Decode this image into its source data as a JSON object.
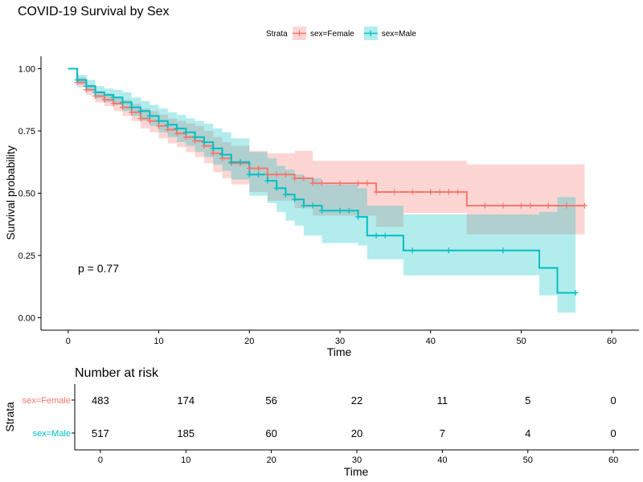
{
  "chart_data": {
    "type": "line",
    "title": "COVID-19 Survival by Sex",
    "xlabel": "Time",
    "ylabel": "Survival probability",
    "xlim": [
      -3,
      63
    ],
    "ylim": [
      -0.05,
      1.05
    ],
    "x_ticks": [
      0,
      10,
      20,
      30,
      40,
      50,
      60
    ],
    "y_ticks": [
      0.0,
      0.25,
      0.5,
      0.75,
      1.0
    ],
    "y_tick_labels": [
      "0.00",
      "0.25",
      "0.50",
      "0.75",
      "1.00"
    ],
    "grid": false,
    "legend": {
      "title": "Strata",
      "position": "top"
    },
    "annotation": "p = 0.77",
    "series": [
      {
        "name": "sex=Female",
        "color": "#F8766D",
        "band_color": "#F8766D",
        "steps": [
          [
            0,
            1.0
          ],
          [
            1,
            0.945
          ],
          [
            2,
            0.915
          ],
          [
            3,
            0.89
          ],
          [
            4,
            0.875
          ],
          [
            5,
            0.86
          ],
          [
            6,
            0.845
          ],
          [
            7,
            0.825
          ],
          [
            8,
            0.8
          ],
          [
            9,
            0.79
          ],
          [
            10,
            0.77
          ],
          [
            11,
            0.755
          ],
          [
            12,
            0.74
          ],
          [
            13,
            0.725
          ],
          [
            14,
            0.71
          ],
          [
            15,
            0.69
          ],
          [
            16,
            0.66
          ],
          [
            17,
            0.64
          ],
          [
            18,
            0.62
          ],
          [
            20,
            0.6
          ],
          [
            22,
            0.575
          ],
          [
            25,
            0.56
          ],
          [
            27,
            0.54
          ],
          [
            34,
            0.505
          ],
          [
            44,
            0.45
          ],
          [
            57,
            0.45
          ]
        ],
        "lower": [
          [
            0,
            1.0
          ],
          [
            1,
            0.925
          ],
          [
            2,
            0.895
          ],
          [
            3,
            0.865
          ],
          [
            4,
            0.85
          ],
          [
            5,
            0.83
          ],
          [
            6,
            0.81
          ],
          [
            7,
            0.79
          ],
          [
            8,
            0.76
          ],
          [
            9,
            0.745
          ],
          [
            10,
            0.72
          ],
          [
            11,
            0.7
          ],
          [
            12,
            0.685
          ],
          [
            13,
            0.665
          ],
          [
            14,
            0.645
          ],
          [
            15,
            0.62
          ],
          [
            16,
            0.585
          ],
          [
            17,
            0.56
          ],
          [
            18,
            0.535
          ],
          [
            20,
            0.505
          ],
          [
            22,
            0.47
          ],
          [
            25,
            0.44
          ],
          [
            27,
            0.41
          ],
          [
            34,
            0.365
          ],
          [
            37,
            0.42
          ],
          [
            44,
            0.335
          ],
          [
            57,
            0.335
          ]
        ],
        "upper": [
          [
            0,
            1.0
          ],
          [
            1,
            0.965
          ],
          [
            2,
            0.935
          ],
          [
            3,
            0.91
          ],
          [
            4,
            0.9
          ],
          [
            5,
            0.885
          ],
          [
            6,
            0.875
          ],
          [
            7,
            0.86
          ],
          [
            8,
            0.84
          ],
          [
            9,
            0.83
          ],
          [
            10,
            0.815
          ],
          [
            11,
            0.8
          ],
          [
            12,
            0.79
          ],
          [
            13,
            0.78
          ],
          [
            14,
            0.77
          ],
          [
            15,
            0.75
          ],
          [
            16,
            0.725
          ],
          [
            17,
            0.705
          ],
          [
            18,
            0.69
          ],
          [
            20,
            0.67
          ],
          [
            22,
            0.66
          ],
          [
            25,
            0.67
          ],
          [
            27,
            0.63
          ],
          [
            34,
            0.63
          ],
          [
            44,
            0.615
          ],
          [
            57,
            0.615
          ]
        ],
        "censors": [
          [
            1,
            0.945
          ],
          [
            2,
            0.915
          ],
          [
            3,
            0.89
          ],
          [
            4,
            0.875
          ],
          [
            5,
            0.86
          ],
          [
            6,
            0.845
          ],
          [
            7,
            0.825
          ],
          [
            8,
            0.8
          ],
          [
            9,
            0.79
          ],
          [
            10,
            0.77
          ],
          [
            11,
            0.755
          ],
          [
            12,
            0.74
          ],
          [
            13,
            0.725
          ],
          [
            14,
            0.71
          ],
          [
            15,
            0.69
          ],
          [
            16,
            0.66
          ],
          [
            17,
            0.64
          ],
          [
            18,
            0.62
          ],
          [
            19,
            0.62
          ],
          [
            20,
            0.6
          ],
          [
            21,
            0.6
          ],
          [
            22,
            0.575
          ],
          [
            23,
            0.575
          ],
          [
            24,
            0.575
          ],
          [
            25,
            0.56
          ],
          [
            26,
            0.56
          ],
          [
            27,
            0.54
          ],
          [
            28,
            0.54
          ],
          [
            30,
            0.54
          ],
          [
            32,
            0.54
          ],
          [
            33,
            0.54
          ],
          [
            34,
            0.505
          ],
          [
            36,
            0.505
          ],
          [
            38,
            0.505
          ],
          [
            40,
            0.505
          ],
          [
            41,
            0.505
          ],
          [
            42,
            0.505
          ],
          [
            43,
            0.505
          ],
          [
            46,
            0.45
          ],
          [
            48,
            0.45
          ],
          [
            50,
            0.45
          ],
          [
            51,
            0.45
          ],
          [
            53,
            0.45
          ],
          [
            55,
            0.45
          ],
          [
            57,
            0.45
          ]
        ]
      },
      {
        "name": "sex=Male",
        "color": "#00BFC4",
        "band_color": "#00BFC4",
        "steps": [
          [
            0,
            1.0
          ],
          [
            1,
            0.955
          ],
          [
            2,
            0.93
          ],
          [
            3,
            0.905
          ],
          [
            4,
            0.895
          ],
          [
            5,
            0.885
          ],
          [
            6,
            0.865
          ],
          [
            7,
            0.845
          ],
          [
            8,
            0.83
          ],
          [
            9,
            0.81
          ],
          [
            10,
            0.79
          ],
          [
            11,
            0.775
          ],
          [
            12,
            0.76
          ],
          [
            13,
            0.745
          ],
          [
            14,
            0.725
          ],
          [
            15,
            0.705
          ],
          [
            16,
            0.68
          ],
          [
            17,
            0.655
          ],
          [
            18,
            0.625
          ],
          [
            20,
            0.575
          ],
          [
            22,
            0.55
          ],
          [
            23,
            0.52
          ],
          [
            24,
            0.495
          ],
          [
            25,
            0.475
          ],
          [
            26,
            0.45
          ],
          [
            28,
            0.43
          ],
          [
            32,
            0.405
          ],
          [
            33,
            0.33
          ],
          [
            37,
            0.27
          ],
          [
            52,
            0.2
          ],
          [
            54,
            0.1
          ],
          [
            56,
            0.1
          ]
        ],
        "lower": [
          [
            0,
            1.0
          ],
          [
            1,
            0.935
          ],
          [
            2,
            0.91
          ],
          [
            3,
            0.88
          ],
          [
            4,
            0.865
          ],
          [
            5,
            0.855
          ],
          [
            6,
            0.83
          ],
          [
            7,
            0.81
          ],
          [
            8,
            0.79
          ],
          [
            9,
            0.77
          ],
          [
            10,
            0.745
          ],
          [
            11,
            0.725
          ],
          [
            12,
            0.705
          ],
          [
            13,
            0.69
          ],
          [
            14,
            0.665
          ],
          [
            15,
            0.645
          ],
          [
            16,
            0.615
          ],
          [
            17,
            0.59
          ],
          [
            18,
            0.555
          ],
          [
            20,
            0.49
          ],
          [
            22,
            0.46
          ],
          [
            23,
            0.425
          ],
          [
            24,
            0.39
          ],
          [
            25,
            0.37
          ],
          [
            26,
            0.33
          ],
          [
            28,
            0.3
          ],
          [
            32,
            0.29
          ],
          [
            33,
            0.235
          ],
          [
            37,
            0.17
          ],
          [
            52,
            0.09
          ],
          [
            54,
            0.02
          ],
          [
            56,
            0.02
          ]
        ],
        "upper": [
          [
            0,
            1.0
          ],
          [
            1,
            0.975
          ],
          [
            2,
            0.955
          ],
          [
            3,
            0.93
          ],
          [
            4,
            0.92
          ],
          [
            5,
            0.915
          ],
          [
            6,
            0.905
          ],
          [
            7,
            0.885
          ],
          [
            8,
            0.87
          ],
          [
            9,
            0.855
          ],
          [
            10,
            0.84
          ],
          [
            11,
            0.825
          ],
          [
            12,
            0.815
          ],
          [
            13,
            0.8
          ],
          [
            14,
            0.79
          ],
          [
            15,
            0.78
          ],
          [
            16,
            0.76
          ],
          [
            17,
            0.745
          ],
          [
            18,
            0.72
          ],
          [
            20,
            0.665
          ],
          [
            22,
            0.64
          ],
          [
            23,
            0.61
          ],
          [
            24,
            0.595
          ],
          [
            25,
            0.575
          ],
          [
            26,
            0.56
          ],
          [
            28,
            0.535
          ],
          [
            32,
            0.52
          ],
          [
            33,
            0.45
          ],
          [
            37,
            0.415
          ],
          [
            52,
            0.425
          ],
          [
            54,
            0.485
          ],
          [
            56,
            0.485
          ]
        ],
        "censors": [
          [
            1,
            0.955
          ],
          [
            2,
            0.93
          ],
          [
            3,
            0.905
          ],
          [
            5,
            0.885
          ],
          [
            6,
            0.865
          ],
          [
            7,
            0.845
          ],
          [
            8,
            0.83
          ],
          [
            9,
            0.81
          ],
          [
            10,
            0.79
          ],
          [
            11,
            0.775
          ],
          [
            12,
            0.76
          ],
          [
            13,
            0.745
          ],
          [
            14,
            0.725
          ],
          [
            15,
            0.705
          ],
          [
            16,
            0.68
          ],
          [
            17,
            0.655
          ],
          [
            18,
            0.625
          ],
          [
            19,
            0.625
          ],
          [
            20,
            0.575
          ],
          [
            21,
            0.575
          ],
          [
            22,
            0.55
          ],
          [
            23,
            0.52
          ],
          [
            24,
            0.495
          ],
          [
            25,
            0.475
          ],
          [
            26,
            0.45
          ],
          [
            27,
            0.45
          ],
          [
            28,
            0.43
          ],
          [
            30,
            0.43
          ],
          [
            31,
            0.43
          ],
          [
            32,
            0.405
          ],
          [
            34,
            0.33
          ],
          [
            35,
            0.33
          ],
          [
            38,
            0.27
          ],
          [
            42,
            0.27
          ],
          [
            48,
            0.27
          ],
          [
            56,
            0.1
          ]
        ]
      }
    ],
    "risk_table": {
      "title": "Number at risk",
      "ylabel": "Strata",
      "xlabel": "Time",
      "time_points": [
        0,
        10,
        20,
        30,
        40,
        50,
        60
      ],
      "rows": [
        {
          "label": "sex=Female",
          "color": "#F8766D",
          "counts": [
            "483",
            "174",
            "56",
            "22",
            "11",
            "5",
            "0"
          ]
        },
        {
          "label": "sex=Male",
          "color": "#00BFC4",
          "counts": [
            "517",
            "185",
            "60",
            "20",
            "7",
            "4",
            "0"
          ]
        }
      ]
    }
  }
}
